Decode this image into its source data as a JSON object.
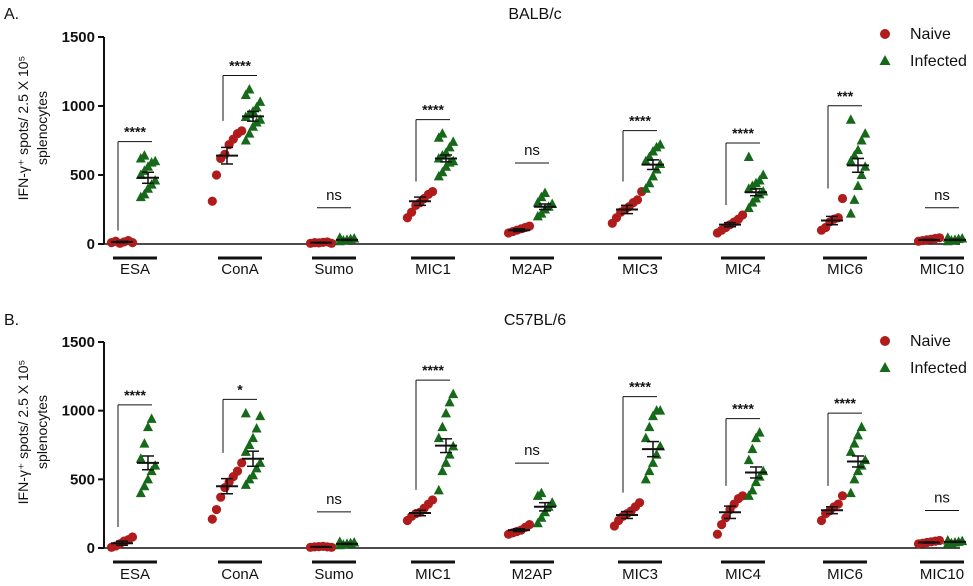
{
  "colors": {
    "naive": "#b01b1b",
    "infected": "#17691a",
    "axis": "#111111"
  },
  "legend": {
    "naive_label": "Naive",
    "infected_label": "Infected"
  },
  "ylabel_lines": [
    "IFN-γ⁺ spots/ 2.5 X 10⁵",
    "splenocytes"
  ],
  "chart_data": [
    {
      "panel_label": "A.",
      "title": "BALB/c",
      "type": "scatter",
      "yticks": [
        0,
        500,
        1000,
        1500
      ],
      "ylim": [
        0,
        1500
      ],
      "legend_position": "top-right",
      "categories": [
        "ESA",
        "ConA",
        "Sumo",
        "MIC1",
        "M2AP",
        "MIC3",
        "MIC4",
        "MIC6",
        "MIC10"
      ],
      "significance": [
        "****",
        "****",
        "ns",
        "****",
        "ns",
        "****",
        "****",
        "***",
        "ns"
      ],
      "series": [
        {
          "name": "Naive",
          "marker": "circle",
          "mean": [
            15,
            640,
            10,
            310,
            100,
            250,
            140,
            170,
            30
          ],
          "sem": [
            5,
            60,
            3,
            30,
            10,
            30,
            15,
            30,
            4
          ],
          "points": [
            [
              10,
              20,
              5,
              15,
              25,
              10
            ],
            [
              310,
              500,
              620,
              650,
              720,
              760,
              800,
              820
            ],
            [
              5,
              10,
              8,
              12,
              15,
              5
            ],
            [
              190,
              230,
              280,
              300,
              330,
              360,
              380
            ],
            [
              80,
              90,
              100,
              110,
              120,
              130
            ],
            [
              150,
              190,
              230,
              250,
              270,
              300,
              320,
              380
            ],
            [
              80,
              100,
              120,
              140,
              160,
              180,
              210
            ],
            [
              100,
              120,
              160,
              180,
              190,
              330
            ],
            [
              20,
              25,
              30,
              35,
              40,
              45
            ]
          ]
        },
        {
          "name": "Infected",
          "marker": "triangle",
          "mean": [
            480,
            925,
            30,
            620,
            270,
            575,
            375,
            570,
            30
          ],
          "sem": [
            40,
            35,
            4,
            25,
            20,
            35,
            25,
            50,
            4
          ],
          "points": [
            [
              340,
              360,
              400,
              430,
              460,
              500,
              530,
              560,
              590,
              600,
              620,
              640
            ],
            [
              750,
              800,
              850,
              880,
              900,
              920,
              940,
              960,
              990,
              1030,
              1080,
              1120
            ],
            [
              20,
              25,
              30,
              35,
              40,
              45
            ],
            [
              490,
              520,
              560,
              590,
              600,
              620,
              640,
              660,
              700,
              740,
              770,
              800
            ],
            [
              200,
              220,
              250,
              270,
              290,
              300,
              340,
              370
            ],
            [
              400,
              440,
              490,
              540,
              580,
              600,
              630,
              670,
              700,
              720
            ],
            [
              260,
              300,
              330,
              360,
              380,
              400,
              420,
              440,
              460,
              500,
              630
            ],
            [
              220,
              320,
              420,
              500,
              560,
              600,
              640,
              680,
              750,
              800,
              900
            ],
            [
              20,
              25,
              30,
              35,
              40,
              45
            ]
          ]
        }
      ]
    },
    {
      "panel_label": "B.",
      "title": "C57BL/6",
      "type": "scatter",
      "yticks": [
        0,
        500,
        1000,
        1500
      ],
      "ylim": [
        0,
        1500
      ],
      "legend_position": "top-right",
      "categories": [
        "ESA",
        "ConA",
        "Sumo",
        "MIC1",
        "M2AP",
        "MIC3",
        "MIC4",
        "MIC6",
        "MIC10"
      ],
      "significance": [
        "****",
        "*",
        "ns",
        "****",
        "ns",
        "****",
        "****",
        "****",
        "ns"
      ],
      "series": [
        {
          "name": "Naive",
          "marker": "circle",
          "mean": [
            35,
            450,
            8,
            255,
            130,
            240,
            260,
            275,
            40
          ],
          "sem": [
            15,
            55,
            2,
            20,
            10,
            25,
            45,
            25,
            4
          ],
          "points": [
            [
              5,
              15,
              30,
              50,
              60,
              80
            ],
            [
              210,
              280,
              370,
              440,
              480,
              520,
              560,
              620
            ],
            [
              5,
              8,
              10,
              12,
              8,
              5
            ],
            [
              200,
              230,
              250,
              260,
              290,
              320,
              350
            ],
            [
              100,
              110,
              120,
              130,
              150,
              170
            ],
            [
              160,
              200,
              230,
              250,
              270,
              300,
              330
            ],
            [
              100,
              170,
              220,
              280,
              320,
              360,
              380
            ],
            [
              200,
              250,
              270,
              300,
              320,
              380
            ],
            [
              30,
              35,
              40,
              45,
              50,
              55
            ]
          ]
        },
        {
          "name": "Infected",
          "marker": "triangle",
          "mean": [
            620,
            650,
            30,
            745,
            300,
            720,
            550,
            630,
            45
          ],
          "sem": [
            50,
            55,
            4,
            50,
            30,
            55,
            40,
            40,
            4
          ],
          "points": [
            [
              400,
              450,
              500,
              560,
              600,
              650,
              760,
              880,
              940
            ],
            [
              460,
              500,
              530,
              580,
              620,
              700,
              750,
              800,
              870,
              960,
              980
            ],
            [
              20,
              25,
              30,
              35,
              40,
              45
            ],
            [
              420,
              560,
              620,
              680,
              740,
              800,
              880,
              980,
              1060,
              1120
            ],
            [
              180,
              220,
              260,
              300,
              330,
              380,
              400
            ],
            [
              500,
              560,
              620,
              680,
              740,
              800,
              880,
              960,
              1000,
              1000
            ],
            [
              380,
              420,
              480,
              520,
              560,
              640,
              720,
              800,
              840
            ],
            [
              400,
              500,
              560,
              600,
              640,
              700,
              760,
              820,
              880
            ],
            [
              30,
              35,
              40,
              45,
              50,
              55
            ]
          ]
        }
      ]
    }
  ]
}
